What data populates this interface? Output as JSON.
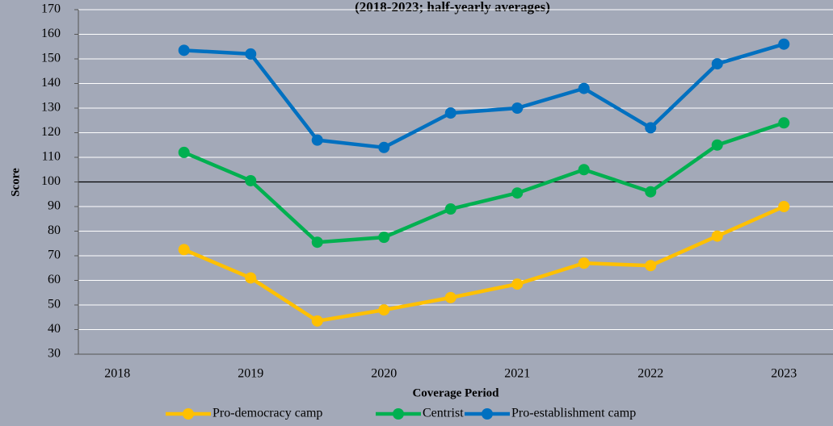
{
  "chart_data": {
    "type": "line",
    "title": "(2018-2023; half-yearly averages)",
    "y_label": "Score",
    "x_label": "Coverage Period",
    "categories": [
      "2018",
      null,
      "2019",
      null,
      "2020",
      null,
      "2021",
      null,
      "2022",
      null,
      "2023"
    ],
    "series": [
      {
        "name": "Pro-democracy camp",
        "color": "#ffc000",
        "values": [
          null,
          72.5,
          61,
          43.5,
          48,
          53,
          58.5,
          67,
          66,
          78,
          90
        ]
      },
      {
        "name": "Centrist",
        "color": "#00b050",
        "values": [
          null,
          112,
          100.5,
          75.5,
          77.5,
          89,
          95.5,
          105,
          96,
          115,
          124
        ]
      },
      {
        "name": "Pro-establishment camp",
        "color": "#0070c0",
        "values": [
          null,
          153.5,
          152,
          117,
          114,
          128,
          130,
          138,
          122,
          148,
          156
        ]
      }
    ],
    "ylim": [
      30,
      170
    ],
    "yticks": [
      30,
      40,
      50,
      60,
      70,
      80,
      90,
      100,
      110,
      120,
      130,
      140,
      150,
      160,
      170
    ],
    "reference_line": 100,
    "grid": true,
    "legend": "bottom"
  }
}
